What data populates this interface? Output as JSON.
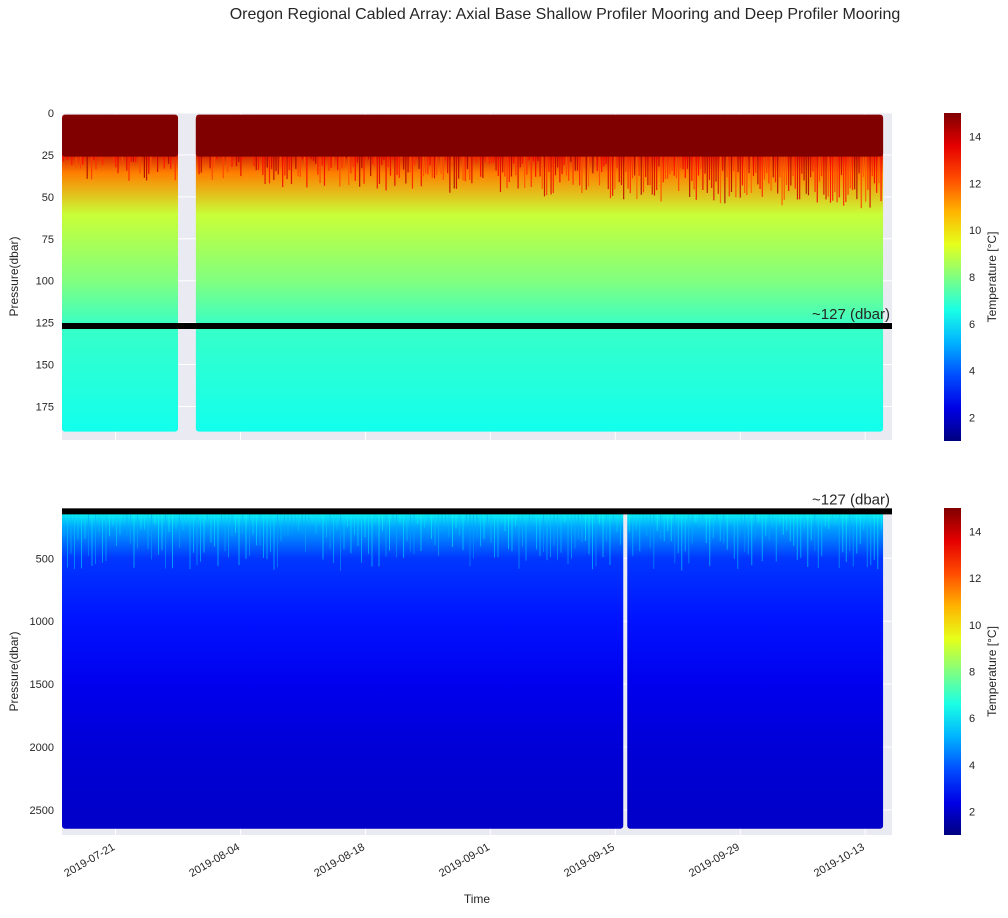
{
  "title": "Oregon Regional Cabled Array: Axial Base Shallow Profiler Mooring and Deep Profiler Mooring",
  "chart_data": [
    {
      "type": "heatmap",
      "panel": "shallow-profiler",
      "ylabel": "Pressure(dbar)",
      "ylim": [
        0,
        195
      ],
      "yticks": [
        0,
        25,
        50,
        75,
        100,
        125,
        150,
        175
      ],
      "y_inverted": true,
      "xlim": [
        "2019-07-15",
        "2019-10-16"
      ],
      "data_start": "2019-07-15",
      "data_end": "2019-10-15",
      "gap": [
        "2019-07-28",
        "2019-07-30"
      ],
      "reference_line": {
        "value": 127,
        "label": "~127 (dbar)"
      },
      "colorbar": {
        "label": "Temperature [°C]",
        "range": [
          1,
          15
        ],
        "ticks": [
          2,
          4,
          6,
          8,
          10,
          12,
          14
        ],
        "colormap": "jet"
      },
      "temperature_profile": [
        {
          "pressure": 0,
          "temperature": 15
        },
        {
          "pressure": 20,
          "temperature": 14
        },
        {
          "pressure": 35,
          "temperature": 11.5
        },
        {
          "pressure": 60,
          "temperature": 9
        },
        {
          "pressure": 100,
          "temperature": 8
        },
        {
          "pressure": 127,
          "temperature": 7
        },
        {
          "pressure": 190,
          "temperature": 6.5
        }
      ],
      "grid": true
    },
    {
      "type": "heatmap",
      "panel": "deep-profiler",
      "xlabel": "Time",
      "ylabel": "Pressure(dbar)",
      "ylim": [
        100,
        2700
      ],
      "yticks": [
        500,
        1000,
        1500,
        2000,
        2500
      ],
      "y_inverted": true,
      "xlim": [
        "2019-07-15",
        "2019-10-16"
      ],
      "xticks": [
        "2019-07-21",
        "2019-08-04",
        "2019-08-18",
        "2019-09-01",
        "2019-09-15",
        "2019-09-29",
        "2019-10-13"
      ],
      "data_start": "2019-07-15",
      "data_end": "2019-10-15",
      "gap": [
        "2019-09-16",
        "2019-09-16"
      ],
      "reference_line": {
        "value": 127,
        "label": "~127 (dbar)"
      },
      "colorbar": {
        "label": "Temperature [°C]",
        "range": [
          1,
          15
        ],
        "ticks": [
          2,
          4,
          6,
          8,
          10,
          12,
          14
        ],
        "colormap": "jet"
      },
      "temperature_profile": [
        {
          "pressure": 127,
          "temperature": 6.5
        },
        {
          "pressure": 250,
          "temperature": 5
        },
        {
          "pressure": 500,
          "temperature": 3.5
        },
        {
          "pressure": 1000,
          "temperature": 3
        },
        {
          "pressure": 1500,
          "temperature": 2.5
        },
        {
          "pressure": 2000,
          "temperature": 2.2
        },
        {
          "pressure": 2650,
          "temperature": 2
        }
      ],
      "grid": true
    }
  ]
}
